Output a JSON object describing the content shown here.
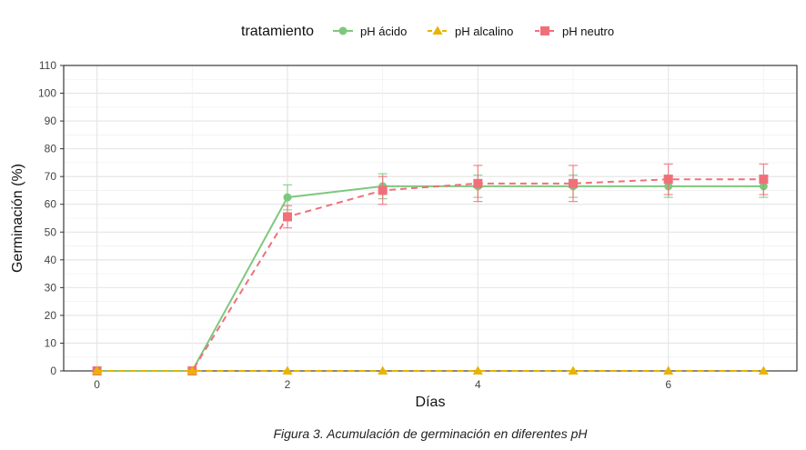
{
  "chart_data": {
    "type": "line",
    "xlabel": "Días",
    "ylabel": "Germinación (%)",
    "xlim": [
      -0.35,
      7.35
    ],
    "ylim": [
      0,
      110
    ],
    "x_ticks": [
      0,
      2,
      4,
      6
    ],
    "y_ticks": [
      0,
      10,
      20,
      30,
      40,
      50,
      60,
      70,
      80,
      90,
      100,
      110
    ],
    "grid": true,
    "legend": {
      "title": "tratamiento",
      "position": "top"
    },
    "x": [
      0,
      1,
      2,
      3,
      4,
      5,
      6,
      7
    ],
    "series": [
      {
        "name": "pH ácido",
        "color": "#7ec87e",
        "marker": "circle",
        "line_style": "solid",
        "values": [
          0,
          0,
          62.5,
          66.5,
          66.5,
          66.5,
          66.5,
          66.5
        ],
        "error_low": [
          0,
          0,
          58,
          62,
          62.5,
          62.5,
          62.5,
          62.5
        ],
        "error_high": [
          0,
          0,
          67,
          71,
          70.5,
          70.5,
          70.5,
          70.5
        ]
      },
      {
        "name": "pH alcalino",
        "color": "#e8b400",
        "marker": "triangle",
        "line_style": "dashed",
        "values": [
          0,
          0,
          0,
          0,
          0,
          0,
          0,
          0
        ],
        "error_low": [
          0,
          0,
          0,
          0,
          0,
          0,
          0,
          0
        ],
        "error_high": [
          0,
          0,
          0,
          0,
          0,
          0,
          0,
          0
        ]
      },
      {
        "name": "pH neutro",
        "color": "#f0707a",
        "marker": "square",
        "line_style": "dashed",
        "values": [
          0,
          0,
          55.5,
          65,
          67.5,
          67.5,
          69,
          69
        ],
        "error_low": [
          0,
          0,
          51.5,
          60,
          61,
          61,
          63.5,
          63.5
        ],
        "error_high": [
          0,
          0,
          59.5,
          70,
          74,
          74,
          74.5,
          74.5
        ]
      }
    ],
    "caption": "Figura 3. Acumulación de germinación en diferentes pH"
  }
}
